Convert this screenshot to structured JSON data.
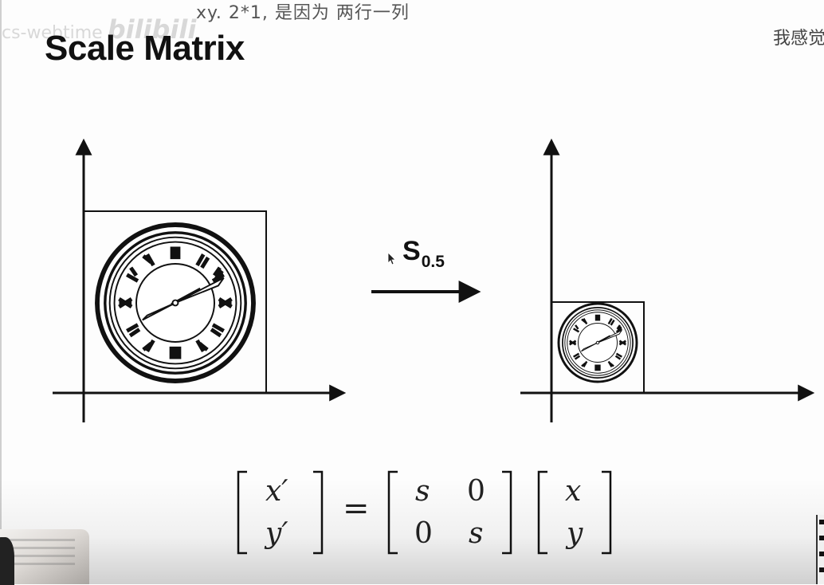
{
  "danmaku": {
    "top": "xy. 2*1, 是因为  两行一列",
    "right": "我感觉"
  },
  "watermark": {
    "text": "cs-webtime",
    "logo": "bilibili"
  },
  "slide": {
    "title": "Scale Matrix",
    "transform_symbol": "S",
    "transform_subscript": "0.5"
  },
  "equation": {
    "output_vector": [
      "x′",
      "y′"
    ],
    "equals": "=",
    "matrix": [
      [
        "s",
        "0"
      ],
      [
        "0",
        "s"
      ]
    ],
    "input_vector": [
      "x",
      "y"
    ]
  },
  "icons": {
    "cursor": "mouse-pointer-icon",
    "clock": "clock-icon"
  },
  "colors": {
    "ink": "#111111",
    "background": "#fdfdfd"
  }
}
